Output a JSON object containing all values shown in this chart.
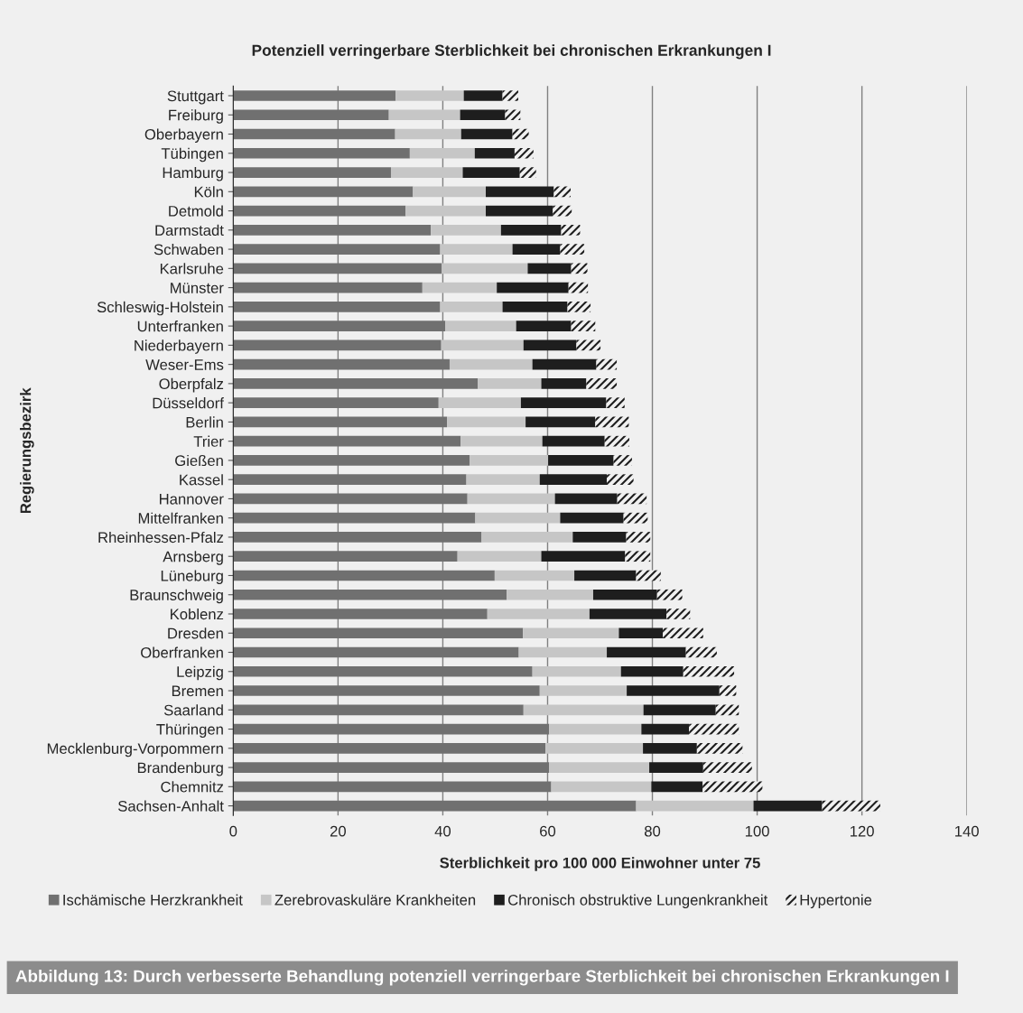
{
  "chart_data": {
    "type": "bar",
    "orientation": "horizontal",
    "stacked": true,
    "title": "Potenziell verringerbare Sterblichkeit bei chronischen Erkrankungen I",
    "xlabel": "Sterblichkeit pro 100 000 Einwohner unter 75",
    "ylabel": "Regierungsbezirk",
    "categories": [
      "Stuttgart",
      "Freiburg",
      "Oberbayern",
      "Tübingen",
      "Hamburg",
      "Köln",
      "Detmold",
      "Darmstadt",
      "Schwaben",
      "Karlsruhe",
      "Münster",
      "Schleswig-Holstein",
      "Unterfranken",
      "Niederbayern",
      "Weser-Ems",
      "Oberpfalz",
      "Düsseldorf",
      "Berlin",
      "Trier",
      "Gießen",
      "Kassel",
      "Hannover",
      "Mittelfranken",
      "Rheinhessen-Pfalz",
      "Arnsberg",
      "Lüneburg",
      "Braunschweig",
      "Koblenz",
      "Dresden",
      "Oberfranken",
      "Leipzig",
      "Bremen",
      "Saarland",
      "Thüringen",
      "Mecklenburg-Vorpommern",
      "Brandenburg",
      "Chemnitz",
      "Sachsen-Anhalt"
    ],
    "series": [
      {
        "name": "Ischämische Herzkrankheit",
        "color": "#707070",
        "values": [
          31.0,
          29.7,
          30.9,
          33.7,
          30.1,
          34.3,
          32.9,
          37.7,
          39.5,
          39.8,
          36.1,
          39.5,
          40.5,
          39.7,
          41.3,
          46.7,
          39.2,
          40.8,
          43.4,
          45.1,
          44.5,
          44.7,
          46.2,
          47.4,
          42.8,
          49.9,
          52.2,
          48.5,
          55.3,
          54.5,
          57.1,
          58.5,
          55.4,
          60.3,
          59.6,
          60.3,
          60.7,
          76.9
        ]
      },
      {
        "name": "Zerebrovaskuläre Krankheiten",
        "color": "#c6c6c6",
        "values": [
          13.0,
          13.6,
          12.6,
          12.4,
          13.7,
          13.9,
          15.3,
          13.4,
          13.8,
          16.4,
          14.2,
          11.9,
          13.5,
          15.7,
          15.8,
          12.1,
          15.7,
          15.0,
          15.6,
          15.0,
          14.0,
          16.7,
          16.2,
          17.4,
          16.0,
          15.2,
          16.5,
          19.5,
          18.3,
          16.8,
          16.9,
          16.6,
          22.9,
          17.6,
          18.6,
          19.1,
          19.1,
          22.4
        ]
      },
      {
        "name": "Chronisch obstruktive Lungenkrankheit",
        "color": "#1e1e1e",
        "values": [
          7.4,
          8.6,
          9.8,
          7.6,
          10.9,
          13.0,
          12.8,
          11.5,
          9.1,
          8.3,
          13.7,
          12.4,
          10.5,
          10.1,
          12.2,
          8.6,
          16.3,
          13.3,
          11.9,
          12.5,
          12.8,
          11.9,
          12.1,
          10.2,
          16.0,
          11.8,
          12.2,
          14.7,
          8.4,
          15.1,
          11.9,
          17.7,
          13.8,
          9.1,
          10.3,
          10.3,
          9.8,
          13.1
        ]
      },
      {
        "name": "Hypertonie",
        "color": "#1e1e1e",
        "values": [
          3.0,
          2.9,
          3.1,
          3.6,
          3.1,
          3.2,
          3.6,
          3.6,
          4.6,
          3.1,
          3.7,
          4.4,
          4.6,
          4.6,
          3.9,
          5.8,
          3.5,
          6.4,
          4.7,
          3.5,
          5.1,
          5.6,
          4.6,
          4.6,
          4.8,
          4.7,
          4.8,
          4.5,
          7.7,
          5.9,
          9.7,
          3.2,
          4.4,
          9.5,
          8.7,
          9.3,
          11.4,
          11.1
        ]
      }
    ],
    "xlim": [
      0,
      140
    ],
    "xticks": [
      0,
      20,
      40,
      60,
      80,
      100,
      120,
      140
    ],
    "grid": "x",
    "legend": "bottom",
    "annotations": [
      "Abbildung 13: Durch verbesserte Behandlung potenziell verringerbare Sterblichkeit bei chronischen Erkrankungen I"
    ]
  }
}
